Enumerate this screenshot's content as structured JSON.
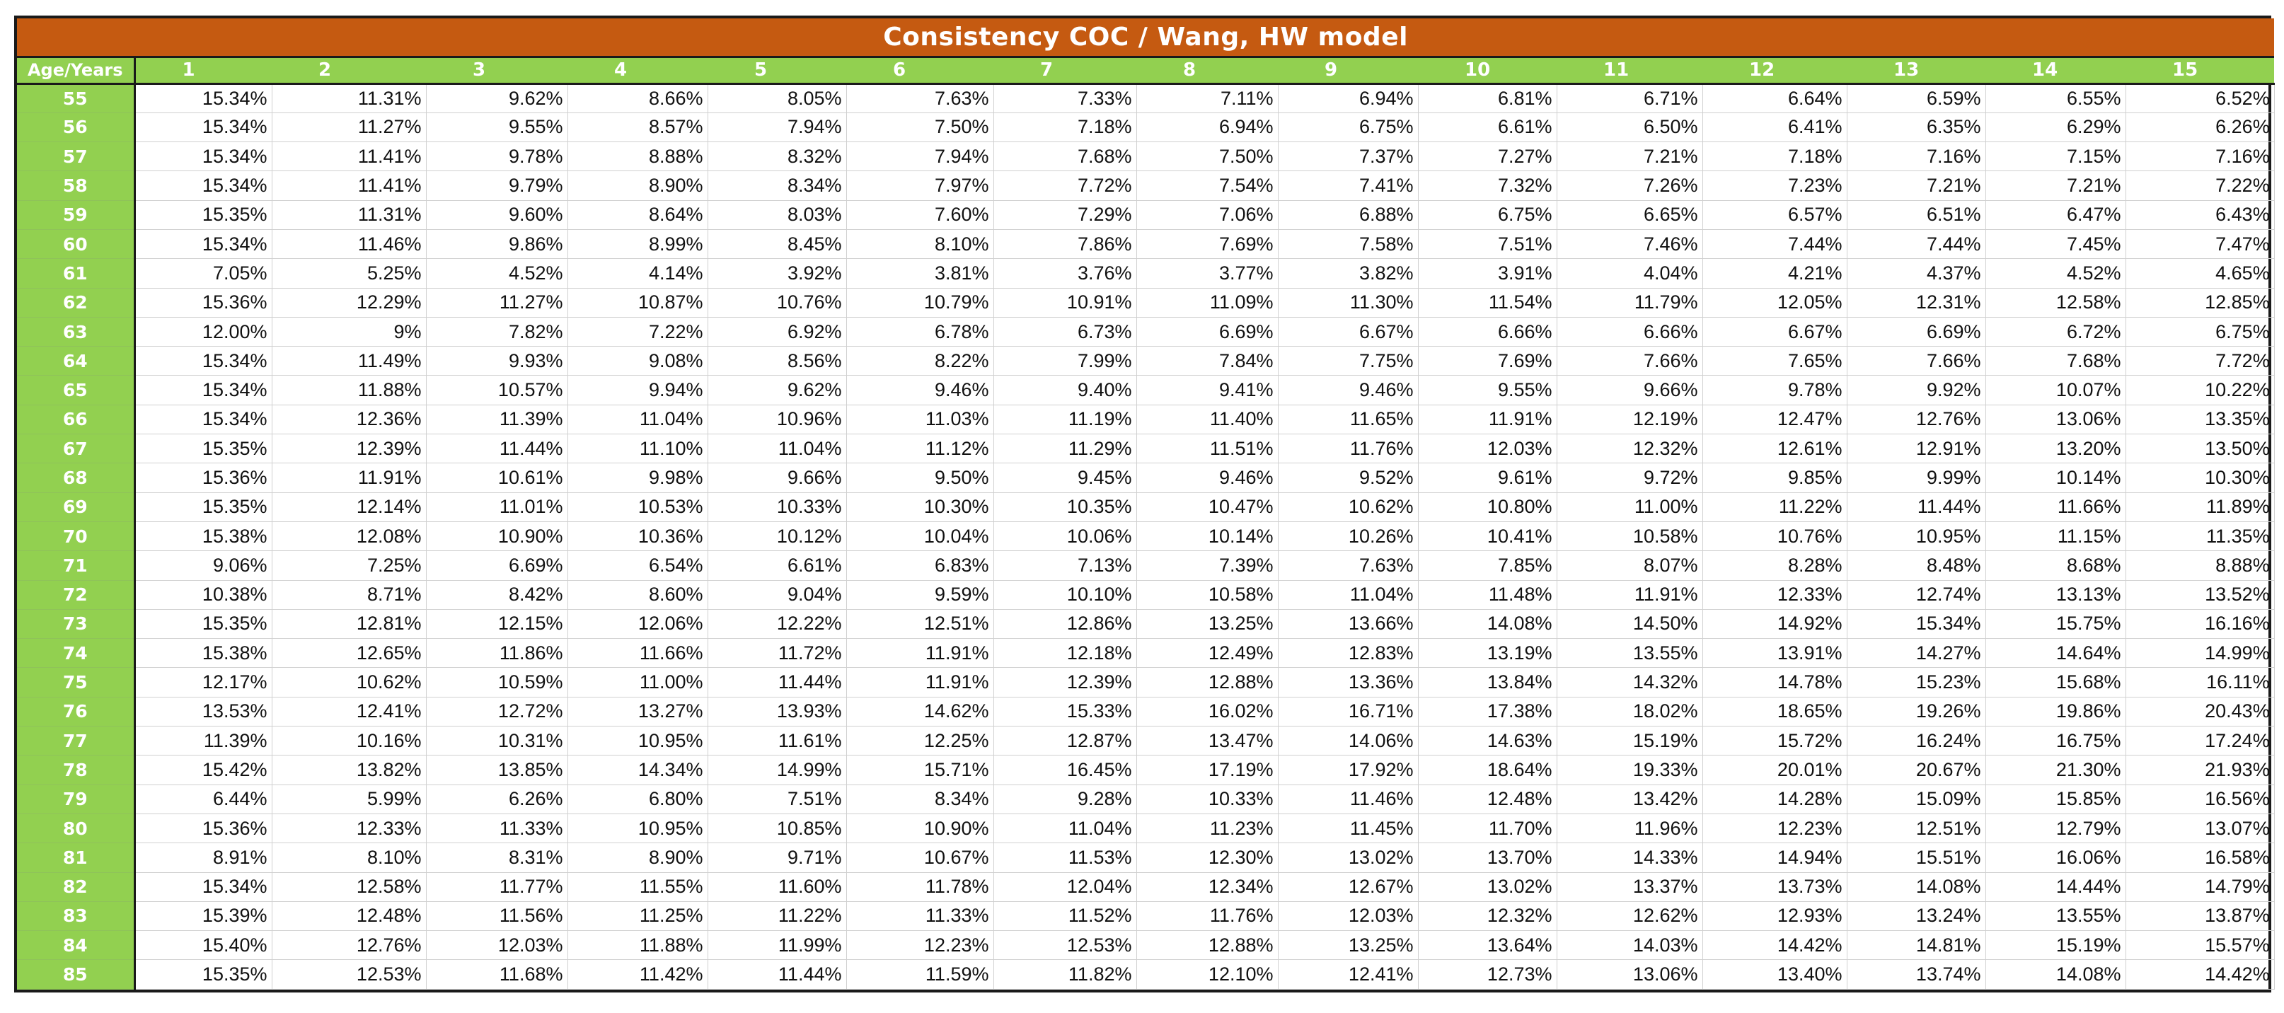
{
  "title": "Consistency COC / Wang, HW model",
  "corner_label": "Age/Years",
  "columns": [
    "1",
    "2",
    "3",
    "4",
    "5",
    "6",
    "7",
    "8",
    "9",
    "10",
    "11",
    "12",
    "13",
    "14",
    "15"
  ],
  "rows": [
    {
      "age": "55",
      "values": [
        "15.34%",
        "11.31%",
        "9.62%",
        "8.66%",
        "8.05%",
        "7.63%",
        "7.33%",
        "7.11%",
        "6.94%",
        "6.81%",
        "6.71%",
        "6.64%",
        "6.59%",
        "6.55%",
        "6.52%"
      ]
    },
    {
      "age": "56",
      "values": [
        "15.34%",
        "11.27%",
        "9.55%",
        "8.57%",
        "7.94%",
        "7.50%",
        "7.18%",
        "6.94%",
        "6.75%",
        "6.61%",
        "6.50%",
        "6.41%",
        "6.35%",
        "6.29%",
        "6.26%"
      ]
    },
    {
      "age": "57",
      "values": [
        "15.34%",
        "11.41%",
        "9.78%",
        "8.88%",
        "8.32%",
        "7.94%",
        "7.68%",
        "7.50%",
        "7.37%",
        "7.27%",
        "7.21%",
        "7.18%",
        "7.16%",
        "7.15%",
        "7.16%"
      ]
    },
    {
      "age": "58",
      "values": [
        "15.34%",
        "11.41%",
        "9.79%",
        "8.90%",
        "8.34%",
        "7.97%",
        "7.72%",
        "7.54%",
        "7.41%",
        "7.32%",
        "7.26%",
        "7.23%",
        "7.21%",
        "7.21%",
        "7.22%"
      ]
    },
    {
      "age": "59",
      "values": [
        "15.35%",
        "11.31%",
        "9.60%",
        "8.64%",
        "8.03%",
        "7.60%",
        "7.29%",
        "7.06%",
        "6.88%",
        "6.75%",
        "6.65%",
        "6.57%",
        "6.51%",
        "6.47%",
        "6.43%"
      ]
    },
    {
      "age": "60",
      "values": [
        "15.34%",
        "11.46%",
        "9.86%",
        "8.99%",
        "8.45%",
        "8.10%",
        "7.86%",
        "7.69%",
        "7.58%",
        "7.51%",
        "7.46%",
        "7.44%",
        "7.44%",
        "7.45%",
        "7.47%"
      ]
    },
    {
      "age": "61",
      "values": [
        "7.05%",
        "5.25%",
        "4.52%",
        "4.14%",
        "3.92%",
        "3.81%",
        "3.76%",
        "3.77%",
        "3.82%",
        "3.91%",
        "4.04%",
        "4.21%",
        "4.37%",
        "4.52%",
        "4.65%"
      ]
    },
    {
      "age": "62",
      "values": [
        "15.36%",
        "12.29%",
        "11.27%",
        "10.87%",
        "10.76%",
        "10.79%",
        "10.91%",
        "11.09%",
        "11.30%",
        "11.54%",
        "11.79%",
        "12.05%",
        "12.31%",
        "12.58%",
        "12.85%"
      ]
    },
    {
      "age": "63",
      "values": [
        "12.00%",
        "9%",
        "7.82%",
        "7.22%",
        "6.92%",
        "6.78%",
        "6.73%",
        "6.69%",
        "6.67%",
        "6.66%",
        "6.66%",
        "6.67%",
        "6.69%",
        "6.72%",
        "6.75%"
      ]
    },
    {
      "age": "64",
      "values": [
        "15.34%",
        "11.49%",
        "9.93%",
        "9.08%",
        "8.56%",
        "8.22%",
        "7.99%",
        "7.84%",
        "7.75%",
        "7.69%",
        "7.66%",
        "7.65%",
        "7.66%",
        "7.68%",
        "7.72%"
      ]
    },
    {
      "age": "65",
      "values": [
        "15.34%",
        "11.88%",
        "10.57%",
        "9.94%",
        "9.62%",
        "9.46%",
        "9.40%",
        "9.41%",
        "9.46%",
        "9.55%",
        "9.66%",
        "9.78%",
        "9.92%",
        "10.07%",
        "10.22%"
      ]
    },
    {
      "age": "66",
      "values": [
        "15.34%",
        "12.36%",
        "11.39%",
        "11.04%",
        "10.96%",
        "11.03%",
        "11.19%",
        "11.40%",
        "11.65%",
        "11.91%",
        "12.19%",
        "12.47%",
        "12.76%",
        "13.06%",
        "13.35%"
      ]
    },
    {
      "age": "67",
      "values": [
        "15.35%",
        "12.39%",
        "11.44%",
        "11.10%",
        "11.04%",
        "11.12%",
        "11.29%",
        "11.51%",
        "11.76%",
        "12.03%",
        "12.32%",
        "12.61%",
        "12.91%",
        "13.20%",
        "13.50%"
      ]
    },
    {
      "age": "68",
      "values": [
        "15.36%",
        "11.91%",
        "10.61%",
        "9.98%",
        "9.66%",
        "9.50%",
        "9.45%",
        "9.46%",
        "9.52%",
        "9.61%",
        "9.72%",
        "9.85%",
        "9.99%",
        "10.14%",
        "10.30%"
      ]
    },
    {
      "age": "69",
      "values": [
        "15.35%",
        "12.14%",
        "11.01%",
        "10.53%",
        "10.33%",
        "10.30%",
        "10.35%",
        "10.47%",
        "10.62%",
        "10.80%",
        "11.00%",
        "11.22%",
        "11.44%",
        "11.66%",
        "11.89%"
      ]
    },
    {
      "age": "70",
      "values": [
        "15.38%",
        "12.08%",
        "10.90%",
        "10.36%",
        "10.12%",
        "10.04%",
        "10.06%",
        "10.14%",
        "10.26%",
        "10.41%",
        "10.58%",
        "10.76%",
        "10.95%",
        "11.15%",
        "11.35%"
      ]
    },
    {
      "age": "71",
      "values": [
        "9.06%",
        "7.25%",
        "6.69%",
        "6.54%",
        "6.61%",
        "6.83%",
        "7.13%",
        "7.39%",
        "7.63%",
        "7.85%",
        "8.07%",
        "8.28%",
        "8.48%",
        "8.68%",
        "8.88%"
      ]
    },
    {
      "age": "72",
      "values": [
        "10.38%",
        "8.71%",
        "8.42%",
        "8.60%",
        "9.04%",
        "9.59%",
        "10.10%",
        "10.58%",
        "11.04%",
        "11.48%",
        "11.91%",
        "12.33%",
        "12.74%",
        "13.13%",
        "13.52%"
      ]
    },
    {
      "age": "73",
      "values": [
        "15.35%",
        "12.81%",
        "12.15%",
        "12.06%",
        "12.22%",
        "12.51%",
        "12.86%",
        "13.25%",
        "13.66%",
        "14.08%",
        "14.50%",
        "14.92%",
        "15.34%",
        "15.75%",
        "16.16%"
      ]
    },
    {
      "age": "74",
      "values": [
        "15.38%",
        "12.65%",
        "11.86%",
        "11.66%",
        "11.72%",
        "11.91%",
        "12.18%",
        "12.49%",
        "12.83%",
        "13.19%",
        "13.55%",
        "13.91%",
        "14.27%",
        "14.64%",
        "14.99%"
      ]
    },
    {
      "age": "75",
      "values": [
        "12.17%",
        "10.62%",
        "10.59%",
        "11.00%",
        "11.44%",
        "11.91%",
        "12.39%",
        "12.88%",
        "13.36%",
        "13.84%",
        "14.32%",
        "14.78%",
        "15.23%",
        "15.68%",
        "16.11%"
      ]
    },
    {
      "age": "76",
      "values": [
        "13.53%",
        "12.41%",
        "12.72%",
        "13.27%",
        "13.93%",
        "14.62%",
        "15.33%",
        "16.02%",
        "16.71%",
        "17.38%",
        "18.02%",
        "18.65%",
        "19.26%",
        "19.86%",
        "20.43%"
      ]
    },
    {
      "age": "77",
      "values": [
        "11.39%",
        "10.16%",
        "10.31%",
        "10.95%",
        "11.61%",
        "12.25%",
        "12.87%",
        "13.47%",
        "14.06%",
        "14.63%",
        "15.19%",
        "15.72%",
        "16.24%",
        "16.75%",
        "17.24%"
      ]
    },
    {
      "age": "78",
      "values": [
        "15.42%",
        "13.82%",
        "13.85%",
        "14.34%",
        "14.99%",
        "15.71%",
        "16.45%",
        "17.19%",
        "17.92%",
        "18.64%",
        "19.33%",
        "20.01%",
        "20.67%",
        "21.30%",
        "21.93%"
      ]
    },
    {
      "age": "79",
      "values": [
        "6.44%",
        "5.99%",
        "6.26%",
        "6.80%",
        "7.51%",
        "8.34%",
        "9.28%",
        "10.33%",
        "11.46%",
        "12.48%",
        "13.42%",
        "14.28%",
        "15.09%",
        "15.85%",
        "16.56%"
      ]
    },
    {
      "age": "80",
      "values": [
        "15.36%",
        "12.33%",
        "11.33%",
        "10.95%",
        "10.85%",
        "10.90%",
        "11.04%",
        "11.23%",
        "11.45%",
        "11.70%",
        "11.96%",
        "12.23%",
        "12.51%",
        "12.79%",
        "13.07%"
      ]
    },
    {
      "age": "81",
      "values": [
        "8.91%",
        "8.10%",
        "8.31%",
        "8.90%",
        "9.71%",
        "10.67%",
        "11.53%",
        "12.30%",
        "13.02%",
        "13.70%",
        "14.33%",
        "14.94%",
        "15.51%",
        "16.06%",
        "16.58%"
      ]
    },
    {
      "age": "82",
      "values": [
        "15.34%",
        "12.58%",
        "11.77%",
        "11.55%",
        "11.60%",
        "11.78%",
        "12.04%",
        "12.34%",
        "12.67%",
        "13.02%",
        "13.37%",
        "13.73%",
        "14.08%",
        "14.44%",
        "14.79%"
      ]
    },
    {
      "age": "83",
      "values": [
        "15.39%",
        "12.48%",
        "11.56%",
        "11.25%",
        "11.22%",
        "11.33%",
        "11.52%",
        "11.76%",
        "12.03%",
        "12.32%",
        "12.62%",
        "12.93%",
        "13.24%",
        "13.55%",
        "13.87%"
      ]
    },
    {
      "age": "84",
      "values": [
        "15.40%",
        "12.76%",
        "12.03%",
        "11.88%",
        "11.99%",
        "12.23%",
        "12.53%",
        "12.88%",
        "13.25%",
        "13.64%",
        "14.03%",
        "14.42%",
        "14.81%",
        "15.19%",
        "15.57%"
      ]
    },
    {
      "age": "85",
      "values": [
        "15.35%",
        "12.53%",
        "11.68%",
        "11.42%",
        "11.44%",
        "11.59%",
        "11.82%",
        "12.10%",
        "12.41%",
        "12.73%",
        "13.06%",
        "13.40%",
        "13.74%",
        "14.08%",
        "14.42%"
      ]
    }
  ],
  "colors": {
    "title_bg": "#c55a11",
    "header_bg": "#92d050",
    "header_text": "#ffffff"
  }
}
